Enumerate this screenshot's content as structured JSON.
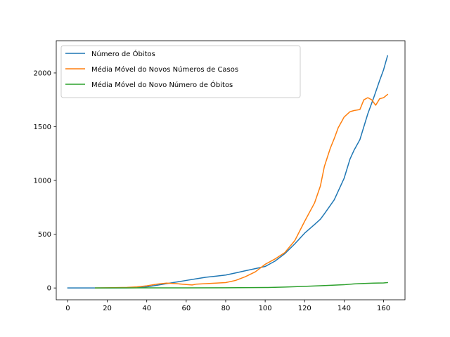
{
  "chart_data": {
    "type": "line",
    "title": "",
    "xlabel": "",
    "ylabel": "",
    "xlim": [
      -5.85,
      170.85
    ],
    "ylim": [
      -110,
      2300
    ],
    "xticks": [
      0,
      20,
      40,
      60,
      80,
      100,
      120,
      140,
      160
    ],
    "yticks": [
      0,
      500,
      1000,
      1500,
      2000
    ],
    "grid": false,
    "legend_position": "top-left",
    "series": [
      {
        "name": "Número de Óbitos",
        "color": "#1f77b4",
        "x": [
          0,
          20,
          30,
          35,
          40,
          45,
          50,
          55,
          60,
          65,
          70,
          75,
          80,
          85,
          90,
          95,
          100,
          105,
          110,
          115,
          120,
          125,
          128,
          130,
          135,
          140,
          143,
          145,
          148,
          152,
          155,
          158,
          160,
          162
        ],
        "y": [
          0,
          0,
          1,
          3,
          10,
          25,
          40,
          55,
          70,
          85,
          100,
          110,
          120,
          140,
          160,
          180,
          200,
          250,
          320,
          410,
          510,
          590,
          640,
          690,
          820,
          1020,
          1200,
          1280,
          1380,
          1620,
          1770,
          1930,
          2030,
          2160
        ]
      },
      {
        "name": "Média Móvel do Novos Números de Casos",
        "color": "#ff7f0e",
        "x": [
          14,
          20,
          30,
          35,
          40,
          45,
          50,
          55,
          60,
          63,
          65,
          70,
          75,
          80,
          85,
          90,
          95,
          100,
          105,
          110,
          115,
          120,
          125,
          128,
          130,
          133,
          135,
          137,
          140,
          143,
          145,
          148,
          150,
          152,
          154,
          156,
          158,
          160,
          162
        ],
        "y": [
          0,
          2,
          5,
          10,
          20,
          35,
          45,
          40,
          32,
          28,
          35,
          40,
          45,
          50,
          70,
          105,
          150,
          220,
          270,
          330,
          440,
          620,
          790,
          950,
          1130,
          1300,
          1390,
          1490,
          1590,
          1640,
          1650,
          1660,
          1750,
          1770,
          1750,
          1700,
          1760,
          1770,
          1800
        ]
      },
      {
        "name": "Média Móvel do Novo Número de Óbitos",
        "color": "#2ca02c",
        "x": [
          14,
          40,
          60,
          80,
          100,
          110,
          120,
          130,
          140,
          145,
          150,
          155,
          160,
          162
        ],
        "y": [
          0,
          1,
          1,
          2,
          4,
          8,
          15,
          22,
          30,
          38,
          42,
          45,
          47,
          50
        ]
      }
    ]
  }
}
